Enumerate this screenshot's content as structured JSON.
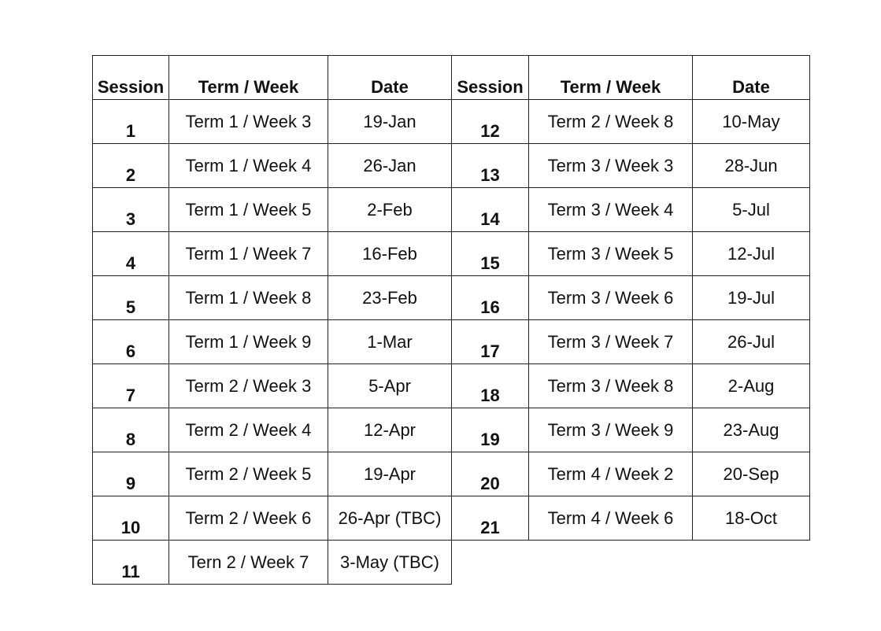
{
  "headers": {
    "left": [
      "Session",
      "Term / Week",
      "Date"
    ],
    "right": [
      "Session",
      "Term / Week",
      "Date"
    ]
  },
  "rows": [
    {
      "left": {
        "session": "1",
        "term_week": "Term 1 / Week 3",
        "date": "19-Jan"
      },
      "right": {
        "session": "12",
        "term_week": "Term 2 / Week 8",
        "date": "10-May"
      }
    },
    {
      "left": {
        "session": "2",
        "term_week": "Term 1 / Week 4",
        "date": "26-Jan"
      },
      "right": {
        "session": "13",
        "term_week": "Term 3 / Week 3",
        "date": "28-Jun"
      }
    },
    {
      "left": {
        "session": "3",
        "term_week": "Term 1 / Week 5",
        "date": "2-Feb"
      },
      "right": {
        "session": "14",
        "term_week": "Term 3 / Week 4",
        "date": "5-Jul"
      }
    },
    {
      "left": {
        "session": "4",
        "term_week": "Term 1 / Week 7",
        "date": "16-Feb"
      },
      "right": {
        "session": "15",
        "term_week": "Term 3 / Week 5",
        "date": "12-Jul"
      }
    },
    {
      "left": {
        "session": "5",
        "term_week": "Term 1 / Week 8",
        "date": "23-Feb"
      },
      "right": {
        "session": "16",
        "term_week": "Term 3 / Week 6",
        "date": "19-Jul"
      }
    },
    {
      "left": {
        "session": "6",
        "term_week": "Term 1 / Week 9",
        "date": "1-Mar"
      },
      "right": {
        "session": "17",
        "term_week": "Term 3 / Week 7",
        "date": "26-Jul"
      }
    },
    {
      "left": {
        "session": "7",
        "term_week": "Term 2 / Week 3",
        "date": "5-Apr"
      },
      "right": {
        "session": "18",
        "term_week": "Term 3 / Week 8",
        "date": "2-Aug"
      }
    },
    {
      "left": {
        "session": "8",
        "term_week": "Term 2 / Week 4",
        "date": "12-Apr"
      },
      "right": {
        "session": "19",
        "term_week": "Term 3 / Week 9",
        "date": "23-Aug"
      }
    },
    {
      "left": {
        "session": "9",
        "term_week": "Term 2 / Week 5",
        "date": "19-Apr"
      },
      "right": {
        "session": "20",
        "term_week": "Term 4 / Week 2",
        "date": "20-Sep"
      }
    },
    {
      "left": {
        "session": "10",
        "term_week": "Term 2 / Week 6",
        "date": "26-Apr (TBC)"
      },
      "right": {
        "session": "21",
        "term_week": "Term 4 / Week 6",
        "date": "18-Oct"
      }
    },
    {
      "left": {
        "session": "11",
        "term_week": "Tern 2 / Week 7",
        "date": "3-May (TBC)"
      },
      "right": null
    }
  ]
}
